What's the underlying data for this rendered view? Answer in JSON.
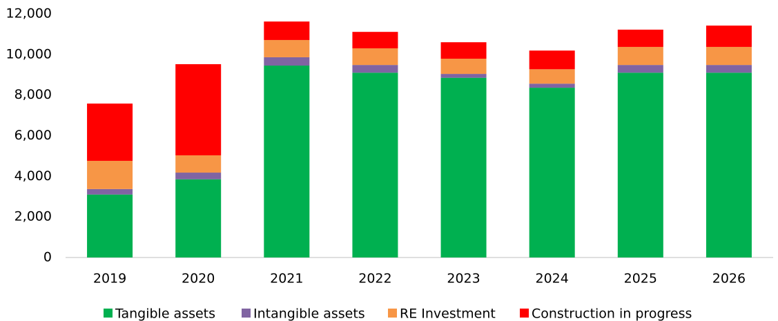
{
  "chart_data": {
    "type": "stacked_bar",
    "categories": [
      "2019",
      "2020",
      "2021",
      "2022",
      "2023",
      "2024",
      "2025",
      "2026"
    ],
    "series": [
      {
        "name": "Tangible assets",
        "color": "#00b050",
        "values": [
          3100,
          3850,
          9450,
          9100,
          8850,
          8360,
          9100,
          9100
        ]
      },
      {
        "name": "Intangible assets",
        "color": "#8064a2",
        "values": [
          270,
          330,
          410,
          380,
          190,
          200,
          380,
          380
        ]
      },
      {
        "name": "RE Investment",
        "color": "#f79646",
        "values": [
          1390,
          850,
          850,
          820,
          750,
          710,
          890,
          890
        ]
      },
      {
        "name": "Construction in progress",
        "color": "#ff0000",
        "values": [
          2820,
          4490,
          910,
          810,
          810,
          920,
          850,
          1050
        ]
      }
    ],
    "ylim": [
      0,
      12000
    ],
    "yticks": [
      0,
      {
        "value": 2000,
        "label": "2,000"
      },
      {
        "value": 4000,
        "label": "4,000"
      },
      {
        "value": 6000,
        "label": "6,000"
      },
      {
        "value": 8000,
        "label": "8,000"
      },
      {
        "value": 10000,
        "label": "10,000"
      },
      {
        "value": 12000,
        "label": "12,000"
      }
    ],
    "grid": false,
    "legend": "bottom"
  }
}
